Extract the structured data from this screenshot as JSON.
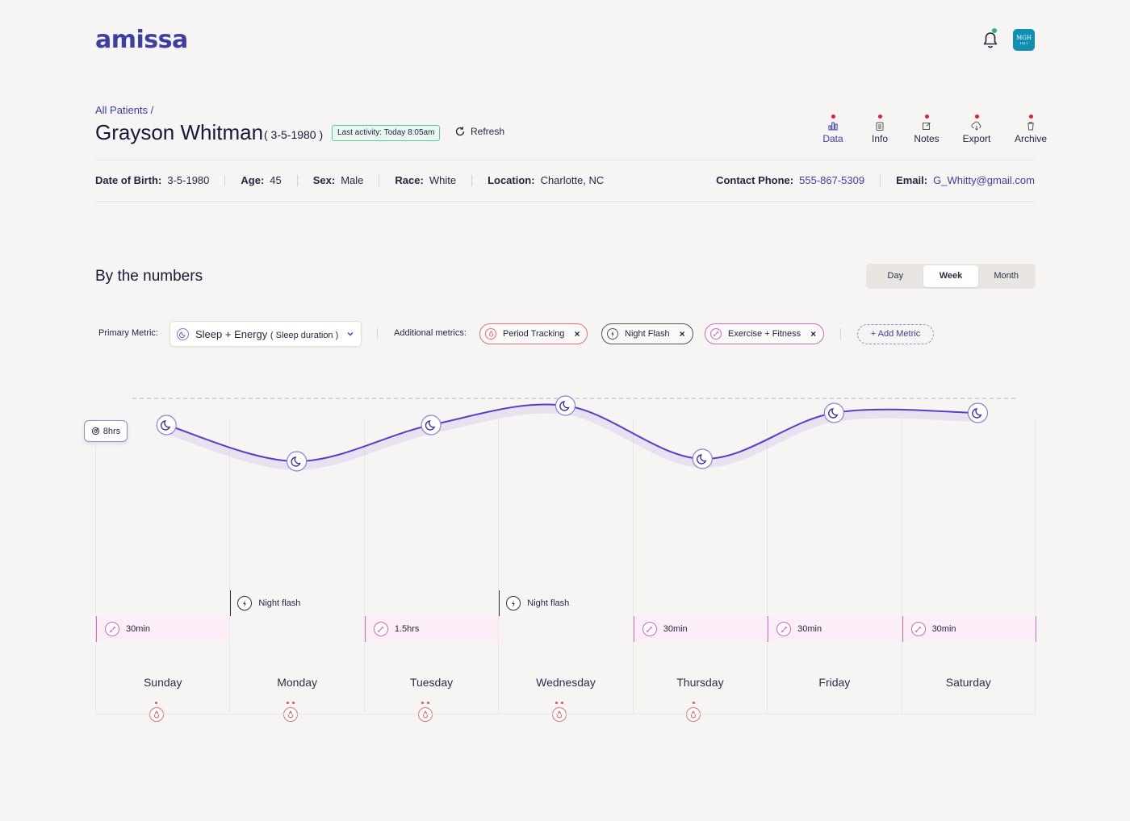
{
  "brand": "amissa",
  "header": {
    "hospital_label": "MGH",
    "hospital_sub": "1811"
  },
  "patient": {
    "breadcrumb": "All Patients /",
    "name": "Grayson Whitman",
    "dob_short": "( 3-5-1980 )",
    "last_activity": "Last activity: Today 8:05am",
    "refresh_label": "Refresh"
  },
  "tabs": [
    {
      "label": "Data",
      "icon": "bar-chart-icon",
      "active": true
    },
    {
      "label": "Info",
      "icon": "clipboard-icon",
      "active": false
    },
    {
      "label": "Notes",
      "icon": "edit-icon",
      "active": false
    },
    {
      "label": "Export",
      "icon": "cloud-download-icon",
      "active": false
    },
    {
      "label": "Archive",
      "icon": "trash-icon",
      "active": false
    }
  ],
  "info": {
    "dob_label": "Date of Birth:",
    "dob": "3-5-1980",
    "age_label": "Age:",
    "age": "45",
    "sex_label": "Sex:",
    "sex": "Male",
    "race_label": "Race:",
    "race": "White",
    "location_label": "Location:",
    "location": "Charlotte, NC",
    "phone_label": "Contact Phone:",
    "phone": "555-867-5309",
    "email_label": "Email:",
    "email": "G_Whitty@gmail.com"
  },
  "numbers": {
    "title": "By the numbers",
    "range": [
      "Day",
      "Week",
      "Month"
    ],
    "range_selected": "Week",
    "primary_label": "Primary Metric:",
    "primary_value": "Sleep + Energy",
    "primary_sub": "( Sleep duration )",
    "additional_label": "Additional metrics:",
    "chips": [
      "Period Tracking",
      "Night Flash",
      "Exercise + Fitness"
    ],
    "add_metric": "+ Add Metric"
  },
  "chart_data": {
    "type": "line",
    "title": "Sleep duration",
    "reference_line": {
      "label": "8hrs",
      "value": 8
    },
    "categories": [
      "Sunday",
      "Monday",
      "Tuesday",
      "Wednesday",
      "Thursday",
      "Friday",
      "Saturday"
    ],
    "series": [
      {
        "name": "Sleep duration (hrs)",
        "values": [
          6.9,
          5.4,
          6.9,
          7.7,
          5.5,
          7.4,
          7.4
        ]
      }
    ],
    "ylim": [
      0,
      10
    ],
    "exercise": [
      "30min",
      "",
      "1.5hrs",
      "",
      "30min",
      "30min",
      "30min"
    ],
    "night_flash": [
      "",
      "Night flash",
      "",
      "Night flash",
      "",
      "",
      ""
    ],
    "period_dots": [
      1,
      2,
      2,
      2,
      1,
      0,
      0
    ],
    "period_marker": [
      true,
      true,
      true,
      true,
      true,
      false,
      false
    ]
  },
  "colors": {
    "accent": "#3b3fa8",
    "line": "#5a3ec8",
    "exercise": "#d16ab8",
    "period": "#e5505a",
    "activity": "#5fc7a4"
  }
}
